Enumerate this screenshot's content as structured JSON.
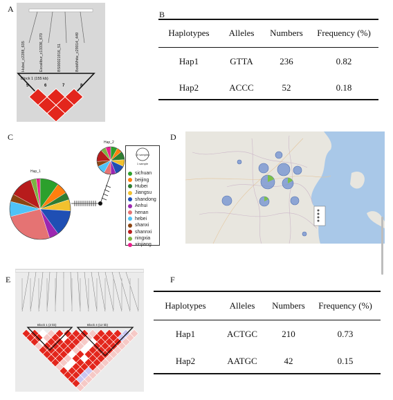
{
  "panels": {
    "a": "A",
    "b": "B",
    "c": "C",
    "d": "D",
    "e": "E",
    "f": "F"
  },
  "panel_a": {
    "markers": [
      "Hubei_c2288_635",
      "Excalibur_c13336_670",
      "BS00021916_51",
      "BobWhite_c29014_449"
    ],
    "block_label": "Block 1 (155 kb)",
    "marker_numbers": [
      "5",
      "6",
      "7",
      "8"
    ],
    "colors": {
      "background": "#d8d8d8",
      "ld_cell": "#e3261c"
    }
  },
  "table_b": {
    "headers": [
      "Haplotypes",
      "Alleles",
      "Numbers",
      "Frequency (%)"
    ],
    "rows": [
      {
        "haplotype": "Hap1",
        "alleles": "GTTA",
        "numbers": "236",
        "frequency": "0.82"
      },
      {
        "haplotype": "Hap2",
        "alleles": "ACCC",
        "numbers": "52",
        "frequency": "0.18"
      }
    ]
  },
  "panel_c": {
    "hap1_label": "Hap_1",
    "hap2_label": "Hap_2",
    "scale_label": "10 samples",
    "scale_small": "1 sample",
    "legend": [
      {
        "name": "sichuan",
        "color": "#2ca02c"
      },
      {
        "name": "beijing",
        "color": "#ff7f0e"
      },
      {
        "name": "Hubei",
        "color": "#2e7d32"
      },
      {
        "name": "Jiangsu",
        "color": "#f2c12e"
      },
      {
        "name": "shandong",
        "color": "#1f4fb4"
      },
      {
        "name": "Anhui",
        "color": "#9c27b0"
      },
      {
        "name": "henan",
        "color": "#e57373"
      },
      {
        "name": "hebei",
        "color": "#4fc3f7"
      },
      {
        "name": "shanxi",
        "color": "#8b4513"
      },
      {
        "name": "shannxi",
        "color": "#b71c1c"
      },
      {
        "name": "ningxia",
        "color": "#7cb342"
      },
      {
        "name": "xinjiang",
        "color": "#e91e8c"
      }
    ]
  },
  "panel_e": {
    "block1_label": "Block 1 (2 kb)",
    "block2_label": "Block 4 (12 kb)",
    "colors": {
      "ld_cell": "#e3261c",
      "low_ld": "#f6c9c6",
      "blue_cell": "#c9c6f2"
    }
  },
  "table_f": {
    "headers": [
      "Haplotypes",
      "Alleles",
      "Numbers",
      "Frequency (%)"
    ],
    "rows": [
      {
        "haplotype": "Hap1",
        "alleles": "ACTGC",
        "numbers": "210",
        "frequency": "0.73"
      },
      {
        "haplotype": "Hap2",
        "alleles": "AATGC",
        "numbers": "42",
        "frequency": "0.15"
      }
    ]
  }
}
